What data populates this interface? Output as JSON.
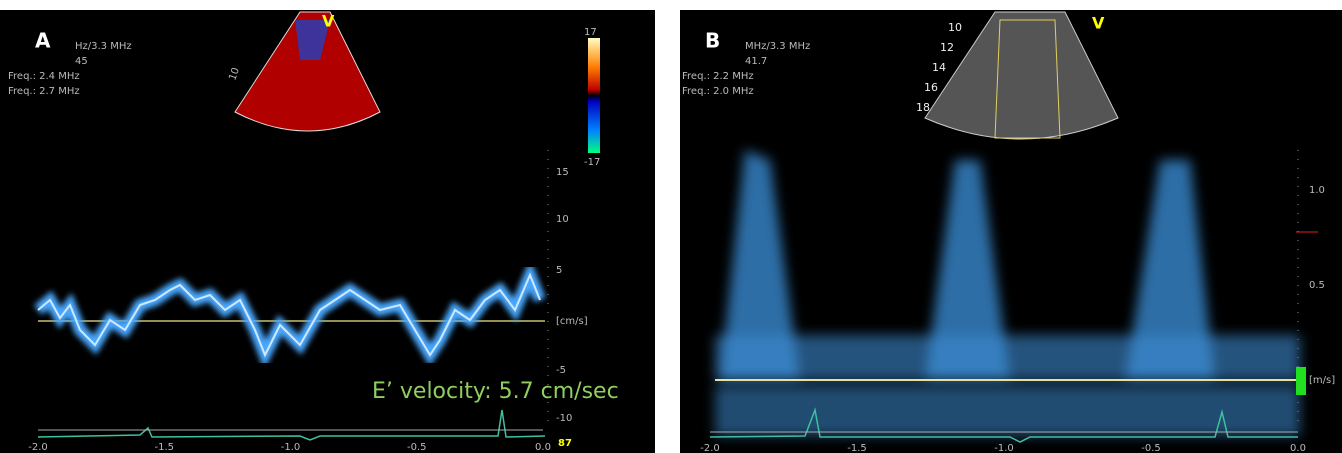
{
  "panel_a": {
    "label": "A",
    "info": [
      "Hz/3.3 MHz",
      "45",
      "Freq.: 2.4 MHz",
      "Freq.: 2.7 MHz"
    ],
    "sector_marker": "V",
    "depth_label": "10",
    "color_bar": {
      "top": "17",
      "bottom": "-17"
    },
    "velocity_scale": [
      "15",
      "10",
      "5",
      "[cm/s]",
      "-5",
      "-10"
    ],
    "time_axis": [
      "-2.0",
      "-1.5",
      "-1.0",
      "-0.5",
      "0.0"
    ],
    "heart_rate": "87",
    "annotation": "E’ velocity: 5.7 cm/sec"
  },
  "panel_b": {
    "label": "B",
    "info": [
      "MHz/3.3 MHz",
      "41.7",
      "Freq.: 2.2 MHz",
      "Freq.: 2.0 MHz"
    ],
    "sector_marker": "V",
    "depth_labels": [
      "10",
      "12",
      "14",
      "16",
      "18"
    ],
    "velocity_scale": [
      "1.0",
      "0.5",
      "[m/s]"
    ],
    "time_axis": [
      "-2.0",
      "-1.5",
      "-1.0",
      "-0.5",
      "0.0"
    ]
  }
}
